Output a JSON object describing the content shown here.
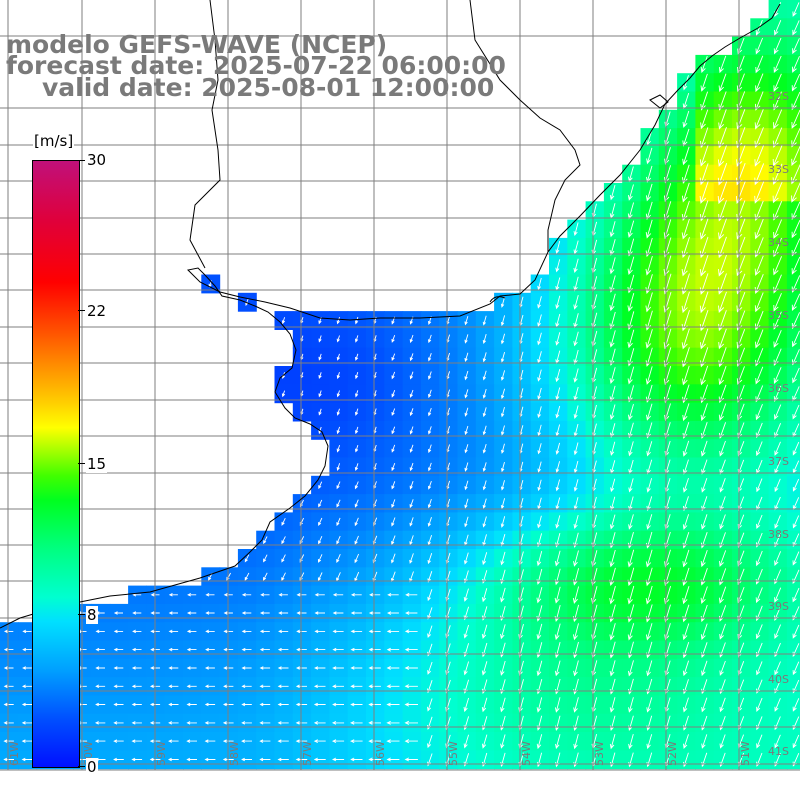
{
  "header": {
    "line1": "modelo GEFS-WAVE (NCEP)",
    "line2": "forecast date: 2025-07-22 06:00:00",
    "line3": "valid date: 2025-08-01 12:00:00"
  },
  "colorbar": {
    "unit": "[m/s]",
    "min": 0,
    "max": 30,
    "tick_labels": [
      "30",
      "22",
      "15",
      "8",
      "0"
    ],
    "tick_values": [
      30,
      22,
      15,
      8,
      0
    ]
  },
  "lat_labels": [
    "32S",
    "33S",
    "34S",
    "35S",
    "36S",
    "37S",
    "38S",
    "39S",
    "40S",
    "41S"
  ],
  "lon_labels": [
    "61W",
    "60W",
    "59W",
    "58W",
    "57W",
    "56W",
    "55W",
    "54W",
    "53W",
    "52W",
    "51W"
  ],
  "colors": {
    "land": "#ffffff",
    "coast": "#000000",
    "grid": "#7f7f7f",
    "text": "#7a7a7a"
  }
}
